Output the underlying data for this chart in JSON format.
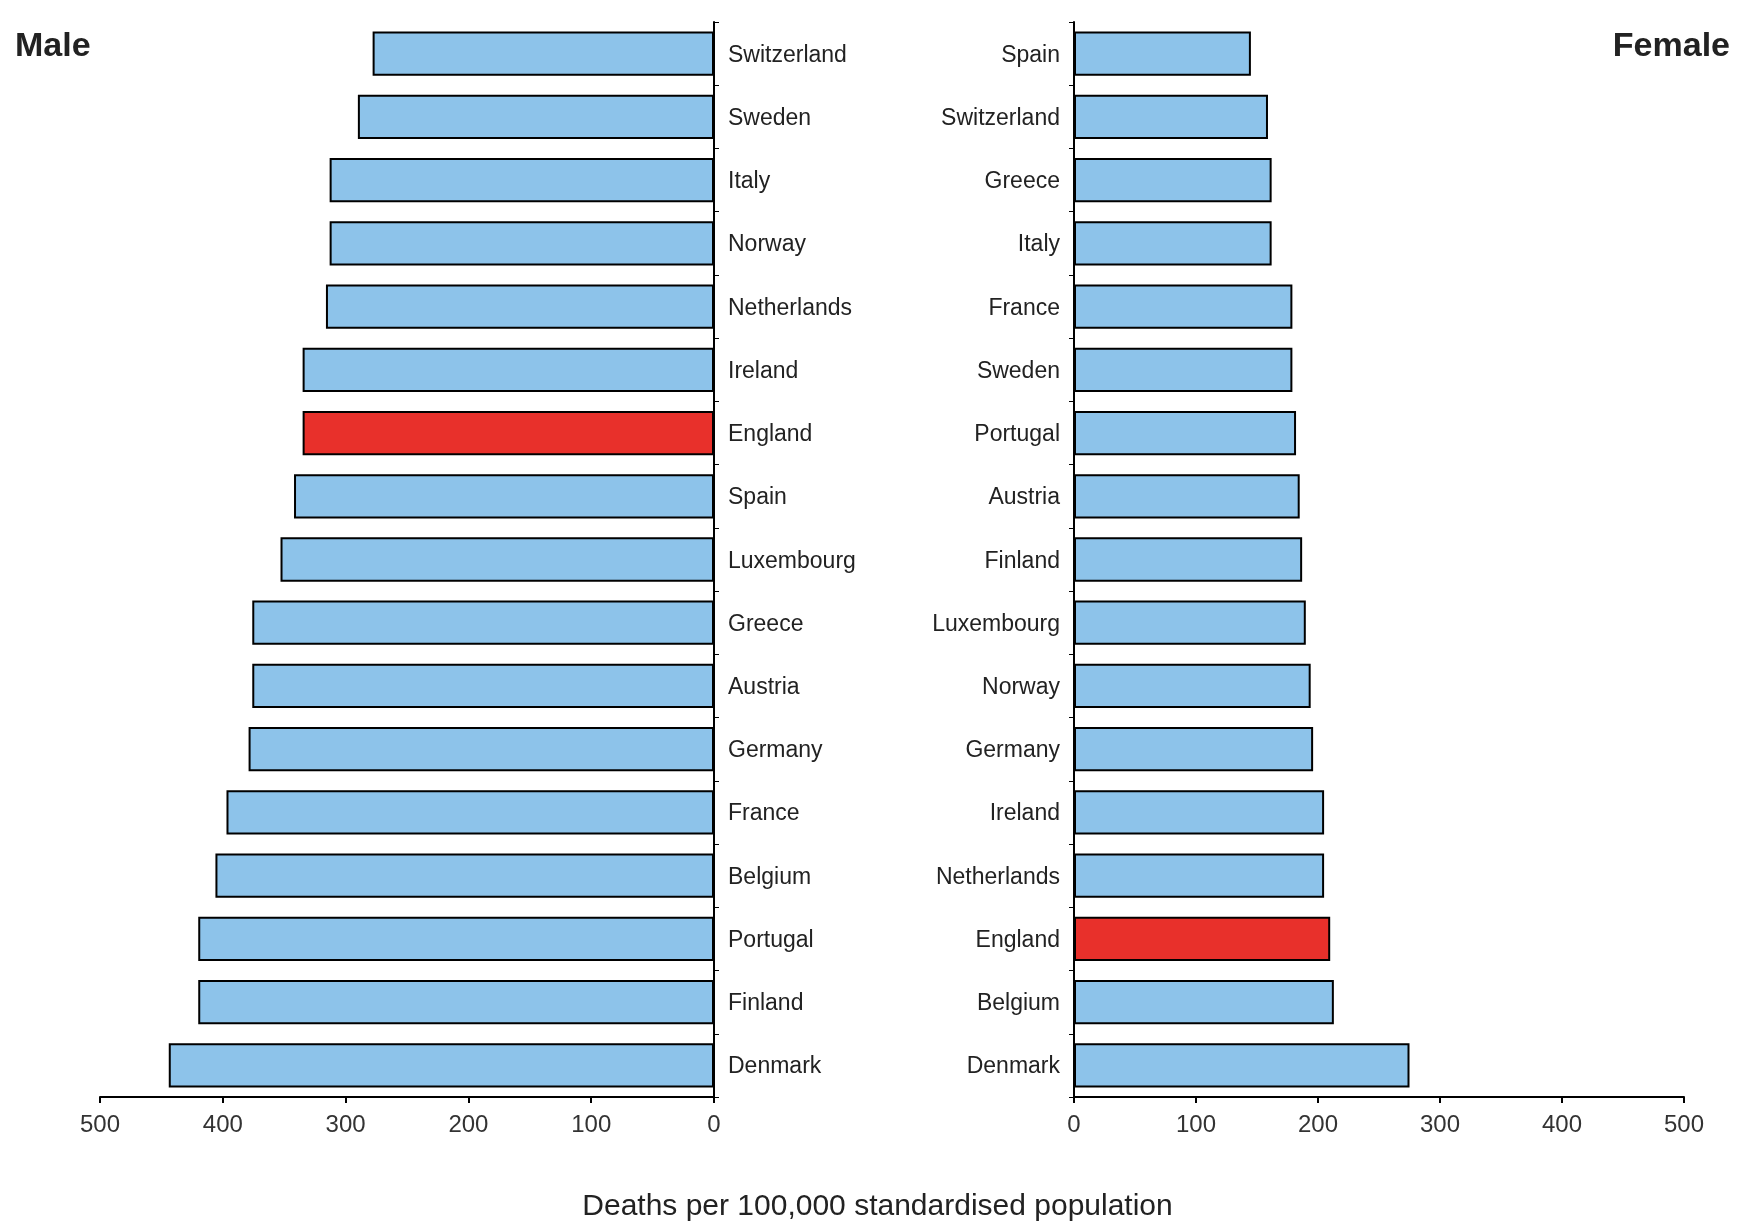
{
  "chart_data": [
    {
      "type": "bar",
      "orientation": "horizontal",
      "title": "Male",
      "xlabel": "Deaths per 100,000 standardised population",
      "categories": [
        "Switzerland",
        "Sweden",
        "Italy",
        "Norway",
        "Netherlands",
        "Ireland",
        "England",
        "Spain",
        "Luxembourg",
        "Greece",
        "Austria",
        "Germany",
        "France",
        "Belgium",
        "Portugal",
        "Finland",
        "Denmark"
      ],
      "values": [
        278,
        290,
        313,
        313,
        316,
        335,
        335,
        342,
        353,
        376,
        376,
        379,
        397,
        406,
        420,
        420,
        444
      ],
      "colors": [
        "#8dc3ea",
        "#8dc3ea",
        "#8dc3ea",
        "#8dc3ea",
        "#8dc3ea",
        "#8dc3ea",
        "#e8302b",
        "#8dc3ea",
        "#8dc3ea",
        "#8dc3ea",
        "#8dc3ea",
        "#8dc3ea",
        "#8dc3ea",
        "#8dc3ea",
        "#8dc3ea",
        "#8dc3ea",
        "#8dc3ea"
      ],
      "xlim": [
        500,
        0
      ],
      "xticks": [
        500,
        400,
        300,
        200,
        100,
        0
      ],
      "grid": false
    },
    {
      "type": "bar",
      "orientation": "horizontal",
      "title": "Female",
      "categories": [
        "Spain",
        "Switzerland",
        "Greece",
        "Italy",
        "France",
        "Sweden",
        "Portugal",
        "Austria",
        "Finland",
        "Luxembourg",
        "Norway",
        "Germany",
        "Ireland",
        "Netherlands",
        "England",
        "Belgium",
        "Denmark"
      ],
      "values": [
        145,
        159,
        162,
        162,
        179,
        179,
        182,
        185,
        187,
        190,
        194,
        196,
        205,
        205,
        210,
        213,
        275
      ],
      "colors": [
        "#8dc3ea",
        "#8dc3ea",
        "#8dc3ea",
        "#8dc3ea",
        "#8dc3ea",
        "#8dc3ea",
        "#8dc3ea",
        "#8dc3ea",
        "#8dc3ea",
        "#8dc3ea",
        "#8dc3ea",
        "#8dc3ea",
        "#8dc3ea",
        "#8dc3ea",
        "#e8302b",
        "#8dc3ea",
        "#8dc3ea"
      ],
      "xlim": [
        0,
        500
      ],
      "xticks": [
        0,
        100,
        200,
        300,
        400,
        500
      ],
      "grid": false
    }
  ]
}
